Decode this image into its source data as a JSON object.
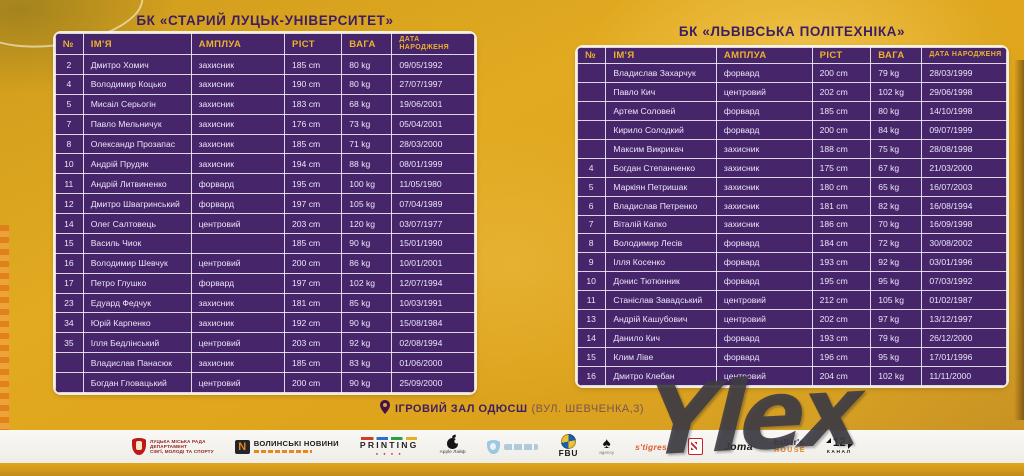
{
  "left_table": {
    "title": "БК «СТАРИЙ ЛУЦЬК-УНІВЕРСИТЕТ»",
    "columns": [
      "№",
      "ІМ'Я",
      "АМПЛУА",
      "РІСТ",
      "ВАГА",
      "ДАТА НАРОДЖЕНЯ"
    ],
    "rows": [
      [
        "2",
        "Дмитро Хомич",
        "захисник",
        "185 cm",
        "80 kg",
        "09/05/1992"
      ],
      [
        "4",
        "Володимир Коцько",
        "захисник",
        "190 cm",
        "80 kg",
        "27/07/1997"
      ],
      [
        "5",
        "Мисаіл Серьогін",
        "захисник",
        "183 cm",
        "68 kg",
        "19/06/2001"
      ],
      [
        "7",
        "Павло Мельничук",
        "захисник",
        "176 cm",
        "73 kg",
        "05/04/2001"
      ],
      [
        "8",
        "Олександр Прозапас",
        "захисник",
        "185 cm",
        "71 kg",
        "28/03/2000"
      ],
      [
        "10",
        "Андрій Прудяк",
        "захисник",
        "194 cm",
        "88 kg",
        "08/01/1999"
      ],
      [
        "11",
        "Андрій Литвиненко",
        "форвард",
        "195 cm",
        "100 kg",
        "11/05/1980"
      ],
      [
        "12",
        "Дмитро Швагринський",
        "форвард",
        "197 cm",
        "105 kg",
        "07/04/1989"
      ],
      [
        "14",
        "Олег Салтовець",
        "центровий",
        "203 cm",
        "120 kg",
        "03/07/1977"
      ],
      [
        "15",
        "Василь Чиок",
        "",
        "185 cm",
        "90 kg",
        "15/01/1990"
      ],
      [
        "16",
        "Володимир Шевчук",
        "центровий",
        "200 cm",
        "86 kg",
        "10/01/2001"
      ],
      [
        "17",
        "Петро Глушко",
        "форвард",
        "197 cm",
        "102 kg",
        "12/07/1994"
      ],
      [
        "23",
        "Едуард Федчук",
        "захисник",
        "181 cm",
        "85 kg",
        "10/03/1991"
      ],
      [
        "34",
        "Юрій Карпенко",
        "захисник",
        "192 cm",
        "90 kg",
        "15/08/1984"
      ],
      [
        "35",
        "Ілля Бедлінський",
        "центровий",
        "203 cm",
        "92 kg",
        "02/08/1994"
      ],
      [
        "",
        "Владислав Панасюк",
        "захисник",
        "185 cm",
        "83 kg",
        "01/06/2000"
      ],
      [
        "",
        "Богдан Гловацький",
        "центровий",
        "200 cm",
        "90 kg",
        "25/09/2000"
      ]
    ]
  },
  "right_table": {
    "title": "БК «ЛЬВІВСЬКА ПОЛІТЕХНІКА»",
    "columns": [
      "№",
      "ІМ'Я",
      "АМПЛУА",
      "РІСТ",
      "ВАГА",
      "ДАТА НАРОДЖЕНЯ"
    ],
    "rows": [
      [
        "",
        "Владислав Захарчук",
        "форвард",
        "200 cm",
        "79 kg",
        "28/03/1999"
      ],
      [
        "",
        "Павло Кич",
        "центровий",
        "202 cm",
        "102 kg",
        "29/06/1998"
      ],
      [
        "",
        "Артем Соловей",
        "форвард",
        "185 cm",
        "80 kg",
        "14/10/1998"
      ],
      [
        "",
        "Кирило Солодкий",
        "форвард",
        "200 cm",
        "84 kg",
        "09/07/1999"
      ],
      [
        "",
        "Максим Викрикач",
        "захисник",
        "188 cm",
        "75 kg",
        "28/08/1998"
      ],
      [
        "4",
        "Богдан Степанченко",
        "захисник",
        "175 cm",
        "67 kg",
        "21/03/2000"
      ],
      [
        "5",
        "Маркіян Петришак",
        "захисник",
        "180 cm",
        "65 kg",
        "16/07/2003"
      ],
      [
        "6",
        "Владислав Петренко",
        "захисник",
        "181 cm",
        "82 kg",
        "16/08/1994"
      ],
      [
        "7",
        "Віталій Капко",
        "захисник",
        "186 cm",
        "70 kg",
        "16/09/1998"
      ],
      [
        "8",
        "Володимир Лесів",
        "форвард",
        "184 cm",
        "72 kg",
        "30/08/2002"
      ],
      [
        "9",
        "Ілля Косенко",
        "форвард",
        "193 cm",
        "92 kg",
        "03/01/1996"
      ],
      [
        "10",
        "Донис Тютюнник",
        "форвард",
        "195 cm",
        "95 kg",
        "07/03/1992"
      ],
      [
        "11",
        "Станіслав Завадський",
        "центровий",
        "212 cm",
        "105 kg",
        "01/02/1987"
      ],
      [
        "13",
        "Андрій Кашубович",
        "центровий",
        "202 cm",
        "97 kg",
        "13/12/1997"
      ],
      [
        "14",
        "Данило Кич",
        "форвард",
        "193 cm",
        "79 kg",
        "26/12/2000"
      ],
      [
        "15",
        "Клим Ліве",
        "форвард",
        "196 cm",
        "95 kg",
        "17/01/1996"
      ],
      [
        "16",
        "Дмитро Клебан",
        "центровий",
        "204 cm",
        "102 kg",
        "11/11/2000"
      ]
    ]
  },
  "footer": {
    "venue_name": "ІГРОВИЙ ЗАЛ ОДЮСШ",
    "venue_address": "(ВУЛ. ШЕВЧЕНКА,3)"
  },
  "sponsors": {
    "rada": {
      "line1": "ЛУЦЬКА МІСЬКА РАДА",
      "line2": "ДЕПАРТАМЕНТ",
      "line3": "СІМ'Ї, МОЛОДІ ТА СПОРТУ"
    },
    "vn": {
      "label": "ВОЛИНСЬКІ НОВИНИ"
    },
    "printing": {
      "label": "PRINTING"
    },
    "apple": {
      "label": "Apple Лайф"
    },
    "fbu": {
      "label": "FBU"
    },
    "agency": {
      "label": "agency"
    },
    "stigres": {
      "label": "s'tigres"
    },
    "joma": {
      "label": "Joma"
    },
    "ballers": {
      "line1": "baller's",
      "line2": "HOUSE"
    },
    "kanal12": {
      "line1": "12",
      "line2": "КАНАЛ"
    }
  },
  "watermark": {
    "text": "Ylex"
  },
  "colors": {
    "background_gold": "#dfa51e",
    "table_purple": "#46256b",
    "header_text_yellow": "#ecb22a",
    "title_purple": "#3c1e63",
    "cell_text": "#ece6f6",
    "strip_white": "#f5f3ef"
  }
}
